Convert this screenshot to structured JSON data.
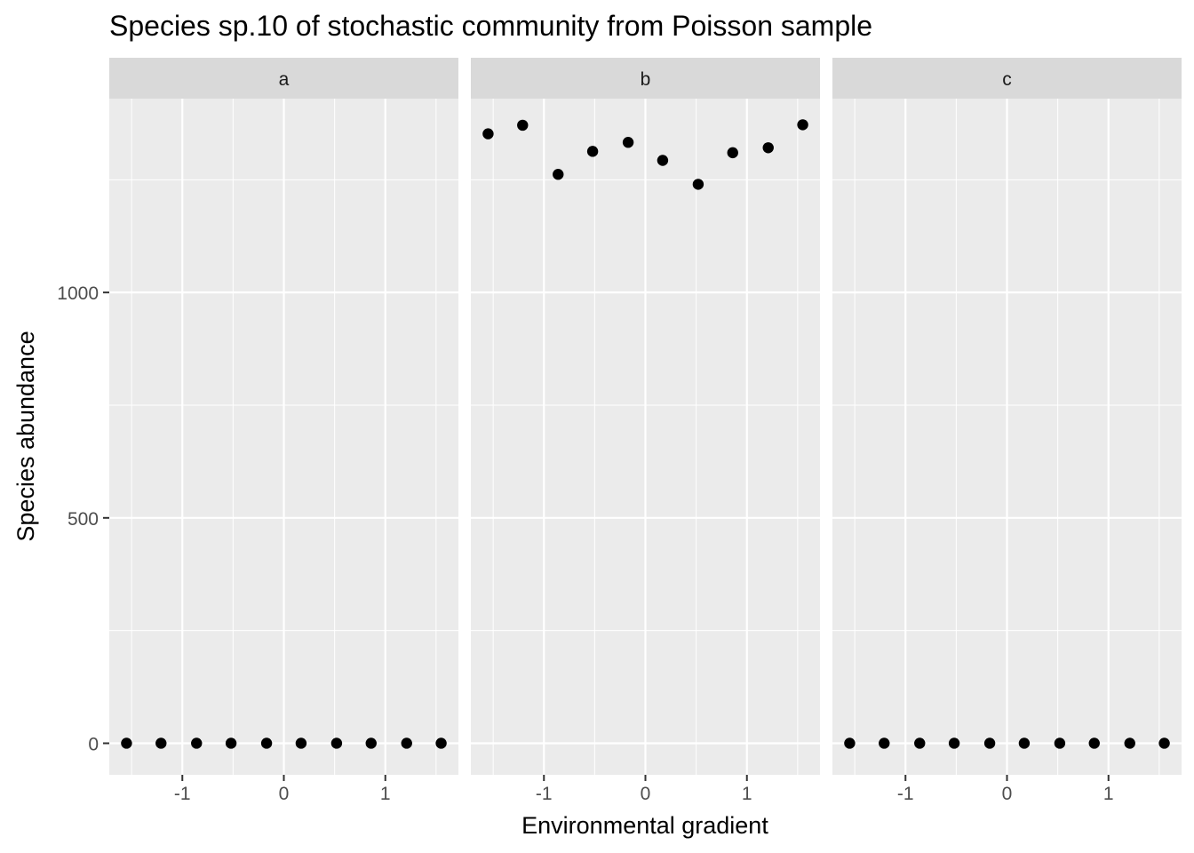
{
  "chart_data": {
    "type": "scatter",
    "title": "Species sp.10 of stochastic community from Poisson sample",
    "xlabel": "Environmental gradient",
    "ylabel": "Species abundance",
    "xlim": [
      -1.72,
      1.72
    ],
    "ylim": [
      -70,
      1430
    ],
    "x_ticks": [
      -1,
      0,
      1
    ],
    "x_tick_labels": [
      "-1",
      "0",
      "1"
    ],
    "y_ticks": [
      0,
      500,
      1000
    ],
    "y_tick_labels": [
      "0",
      "500",
      "1000"
    ],
    "grid": true,
    "point_color": "#000000",
    "panel_background": "#ebebeb",
    "strip_background": "#d9d9d9",
    "x": [
      -1.55,
      -1.21,
      -0.86,
      -0.52,
      -0.17,
      0.17,
      0.52,
      0.86,
      1.21,
      1.55
    ],
    "panels": [
      {
        "name": "a",
        "y": [
          0,
          0,
          0,
          0,
          0,
          0,
          0,
          0,
          0,
          0
        ]
      },
      {
        "name": "b",
        "y": [
          1352,
          1371,
          1262,
          1313,
          1333,
          1293,
          1240,
          1310,
          1321,
          1372
        ]
      },
      {
        "name": "c",
        "y": [
          0,
          0,
          0,
          0,
          0,
          0,
          0,
          0,
          0,
          0
        ]
      }
    ]
  }
}
